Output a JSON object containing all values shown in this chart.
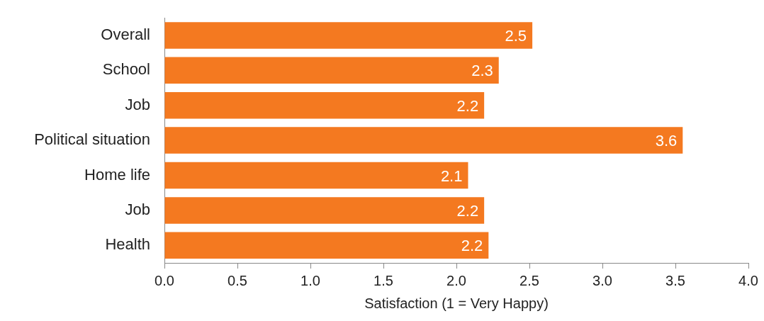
{
  "chart_data": {
    "type": "bar",
    "orientation": "horizontal",
    "xlabel": "Satisfaction (1 = Very Happy)",
    "categories": [
      "Overall",
      "School",
      "Job",
      "Political situation",
      "Home life",
      "Job",
      "Health"
    ],
    "values": [
      2.52,
      2.29,
      2.19,
      3.55,
      2.08,
      2.19,
      2.22
    ],
    "value_labels": [
      "2.5",
      "2.3",
      "2.2",
      "3.6",
      "2.1",
      "2.2",
      "2.2"
    ],
    "color": "#f47920",
    "xlim": [
      0,
      4
    ],
    "xticks": [
      {
        "value": 0,
        "label": "0.0"
      },
      0.5,
      {
        "value": 1,
        "label": "1.0"
      },
      1.5,
      {
        "value": 2,
        "label": "2.0"
      },
      2.5,
      {
        "value": 3,
        "label": "3.0"
      },
      3.5,
      {
        "value": 4,
        "label": "4.0"
      }
    ],
    "grid": false,
    "legend": false
  }
}
